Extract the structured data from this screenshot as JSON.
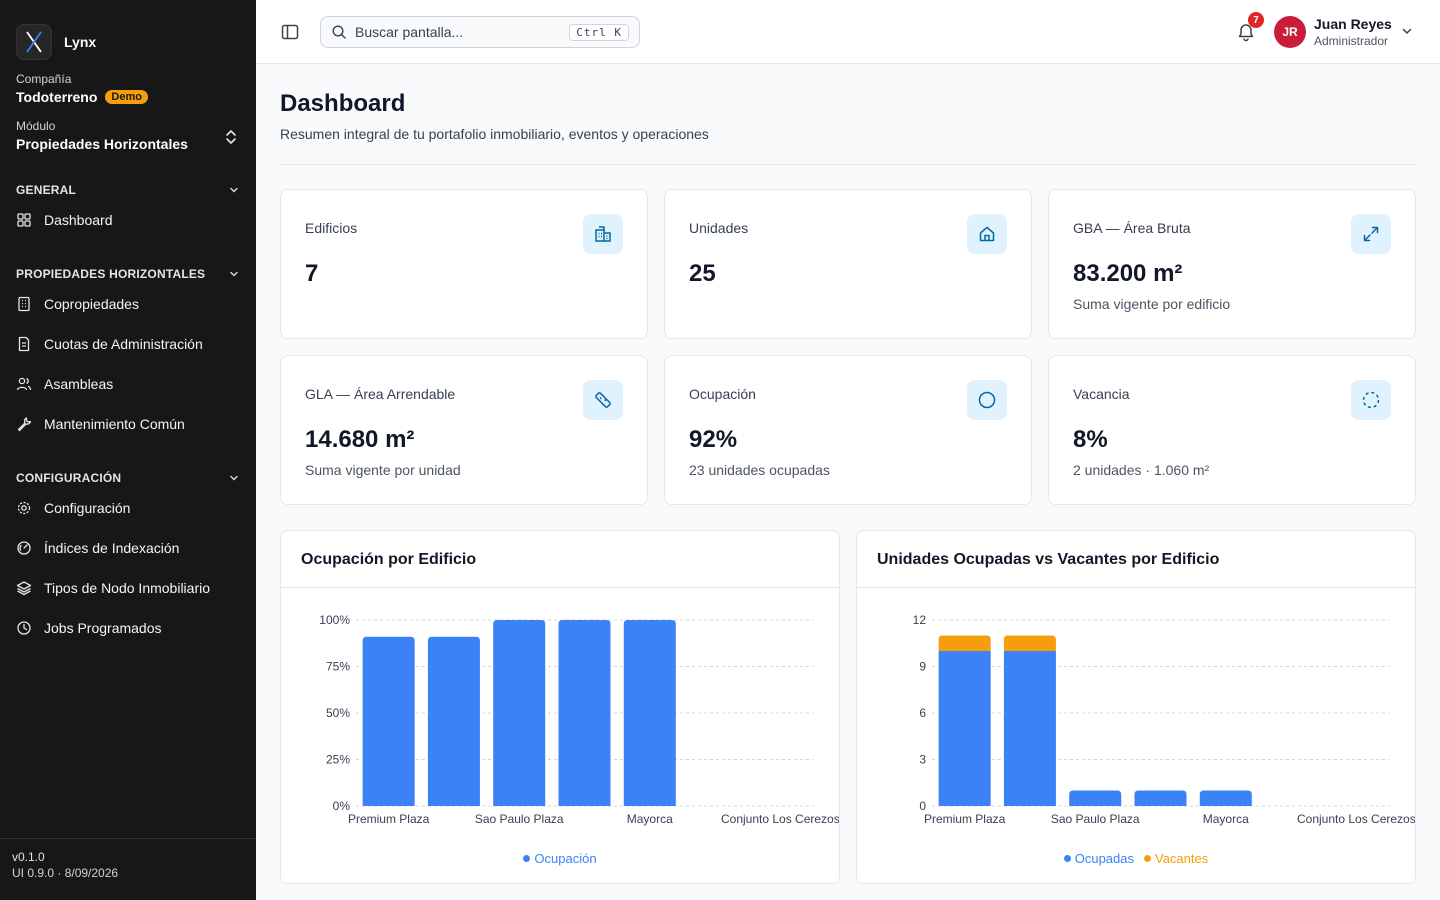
{
  "sidebar": {
    "brand": "Lynx",
    "company_label": "Compañía",
    "company_name": "Todoterreno",
    "company_badge": "Demo",
    "module_label": "Módulo",
    "module_name": "Propiedades Horizontales",
    "sections": [
      {
        "title": "GENERAL",
        "items": [
          {
            "label": "Dashboard",
            "icon": "grid-icon"
          }
        ]
      },
      {
        "title": "PROPIEDADES HORIZONTALES",
        "items": [
          {
            "label": "Copropiedades",
            "icon": "building-icon"
          },
          {
            "label": "Cuotas de Administración",
            "icon": "receipt-icon"
          },
          {
            "label": "Asambleas",
            "icon": "users-icon"
          },
          {
            "label": "Mantenimiento Común",
            "icon": "wrench-icon"
          }
        ]
      },
      {
        "title": "CONFIGURACIÓN",
        "items": [
          {
            "label": "Configuración",
            "icon": "gear-icon"
          },
          {
            "label": "Índices de Indexación",
            "icon": "gauge-icon"
          },
          {
            "label": "Tipos de Nodo Inmobiliario",
            "icon": "layers-icon"
          },
          {
            "label": "Jobs Programados",
            "icon": "clock-icon"
          }
        ]
      }
    ],
    "version": "v0.1.0",
    "ui_version": "UI 0.9.0 · 8/09/2026"
  },
  "header": {
    "search_placeholder": "Buscar pantalla...",
    "search_shortcut": "Ctrl K",
    "notifications": "7",
    "user_initials": "JR",
    "user_name": "Juan Reyes",
    "user_role": "Administrador"
  },
  "page": {
    "title": "Dashboard",
    "subtitle": "Resumen integral de tu portafolio inmobiliario, eventos y operaciones"
  },
  "cards": [
    {
      "label": "Edificios",
      "value": "7",
      "sub": "",
      "icon": "building-icon"
    },
    {
      "label": "Unidades",
      "value": "25",
      "sub": "",
      "icon": "home-icon"
    },
    {
      "label": "GBA — Área Bruta",
      "value": "83.200 m²",
      "sub": "Suma vigente por edificio",
      "icon": "expand-icon"
    },
    {
      "label": "GLA — Área Arrendable",
      "value": "14.680 m²",
      "sub": "Suma vigente por unidad",
      "icon": "ruler-icon"
    },
    {
      "label": "Ocupación",
      "value": "92%",
      "sub": "23 unidades ocupadas",
      "icon": "circle-icon"
    },
    {
      "label": "Vacancia",
      "value": "8%",
      "sub": "2 unidades · 1.060 m²",
      "icon": "dashed-circle-icon"
    }
  ],
  "colors": {
    "primary": "#3b82f6",
    "secondary": "#f59e0b",
    "icon": "#0369a1"
  },
  "chart_data": [
    {
      "type": "bar",
      "title": "Ocupación por Edificio",
      "categories": [
        "Premium Plaza",
        "",
        "Sao Paulo Plaza",
        "",
        "Mayorca",
        "",
        "Conjunto Los Cerezos"
      ],
      "series": [
        {
          "name": "Ocupación",
          "values": [
            91,
            91,
            100,
            100,
            100,
            0,
            0
          ]
        }
      ],
      "y_ticks": [
        "0%",
        "25%",
        "50%",
        "75%",
        "100%"
      ],
      "ylim": [
        0,
        100
      ],
      "grid": true,
      "legend": "bottom"
    },
    {
      "type": "bar",
      "stacked": true,
      "title": "Unidades Ocupadas vs Vacantes por Edificio",
      "categories": [
        "Premium Plaza",
        "",
        "Sao Paulo Plaza",
        "",
        "Mayorca",
        "",
        "Conjunto Los Cerezos"
      ],
      "series": [
        {
          "name": "Ocupadas",
          "values": [
            10,
            10,
            1,
            1,
            1,
            0,
            0
          ]
        },
        {
          "name": "Vacantes",
          "values": [
            1,
            1,
            0,
            0,
            0,
            0,
            0
          ]
        }
      ],
      "y_ticks": [
        "0",
        "3",
        "6",
        "9",
        "12"
      ],
      "ylim": [
        0,
        12
      ],
      "grid": true,
      "legend": "bottom"
    }
  ]
}
